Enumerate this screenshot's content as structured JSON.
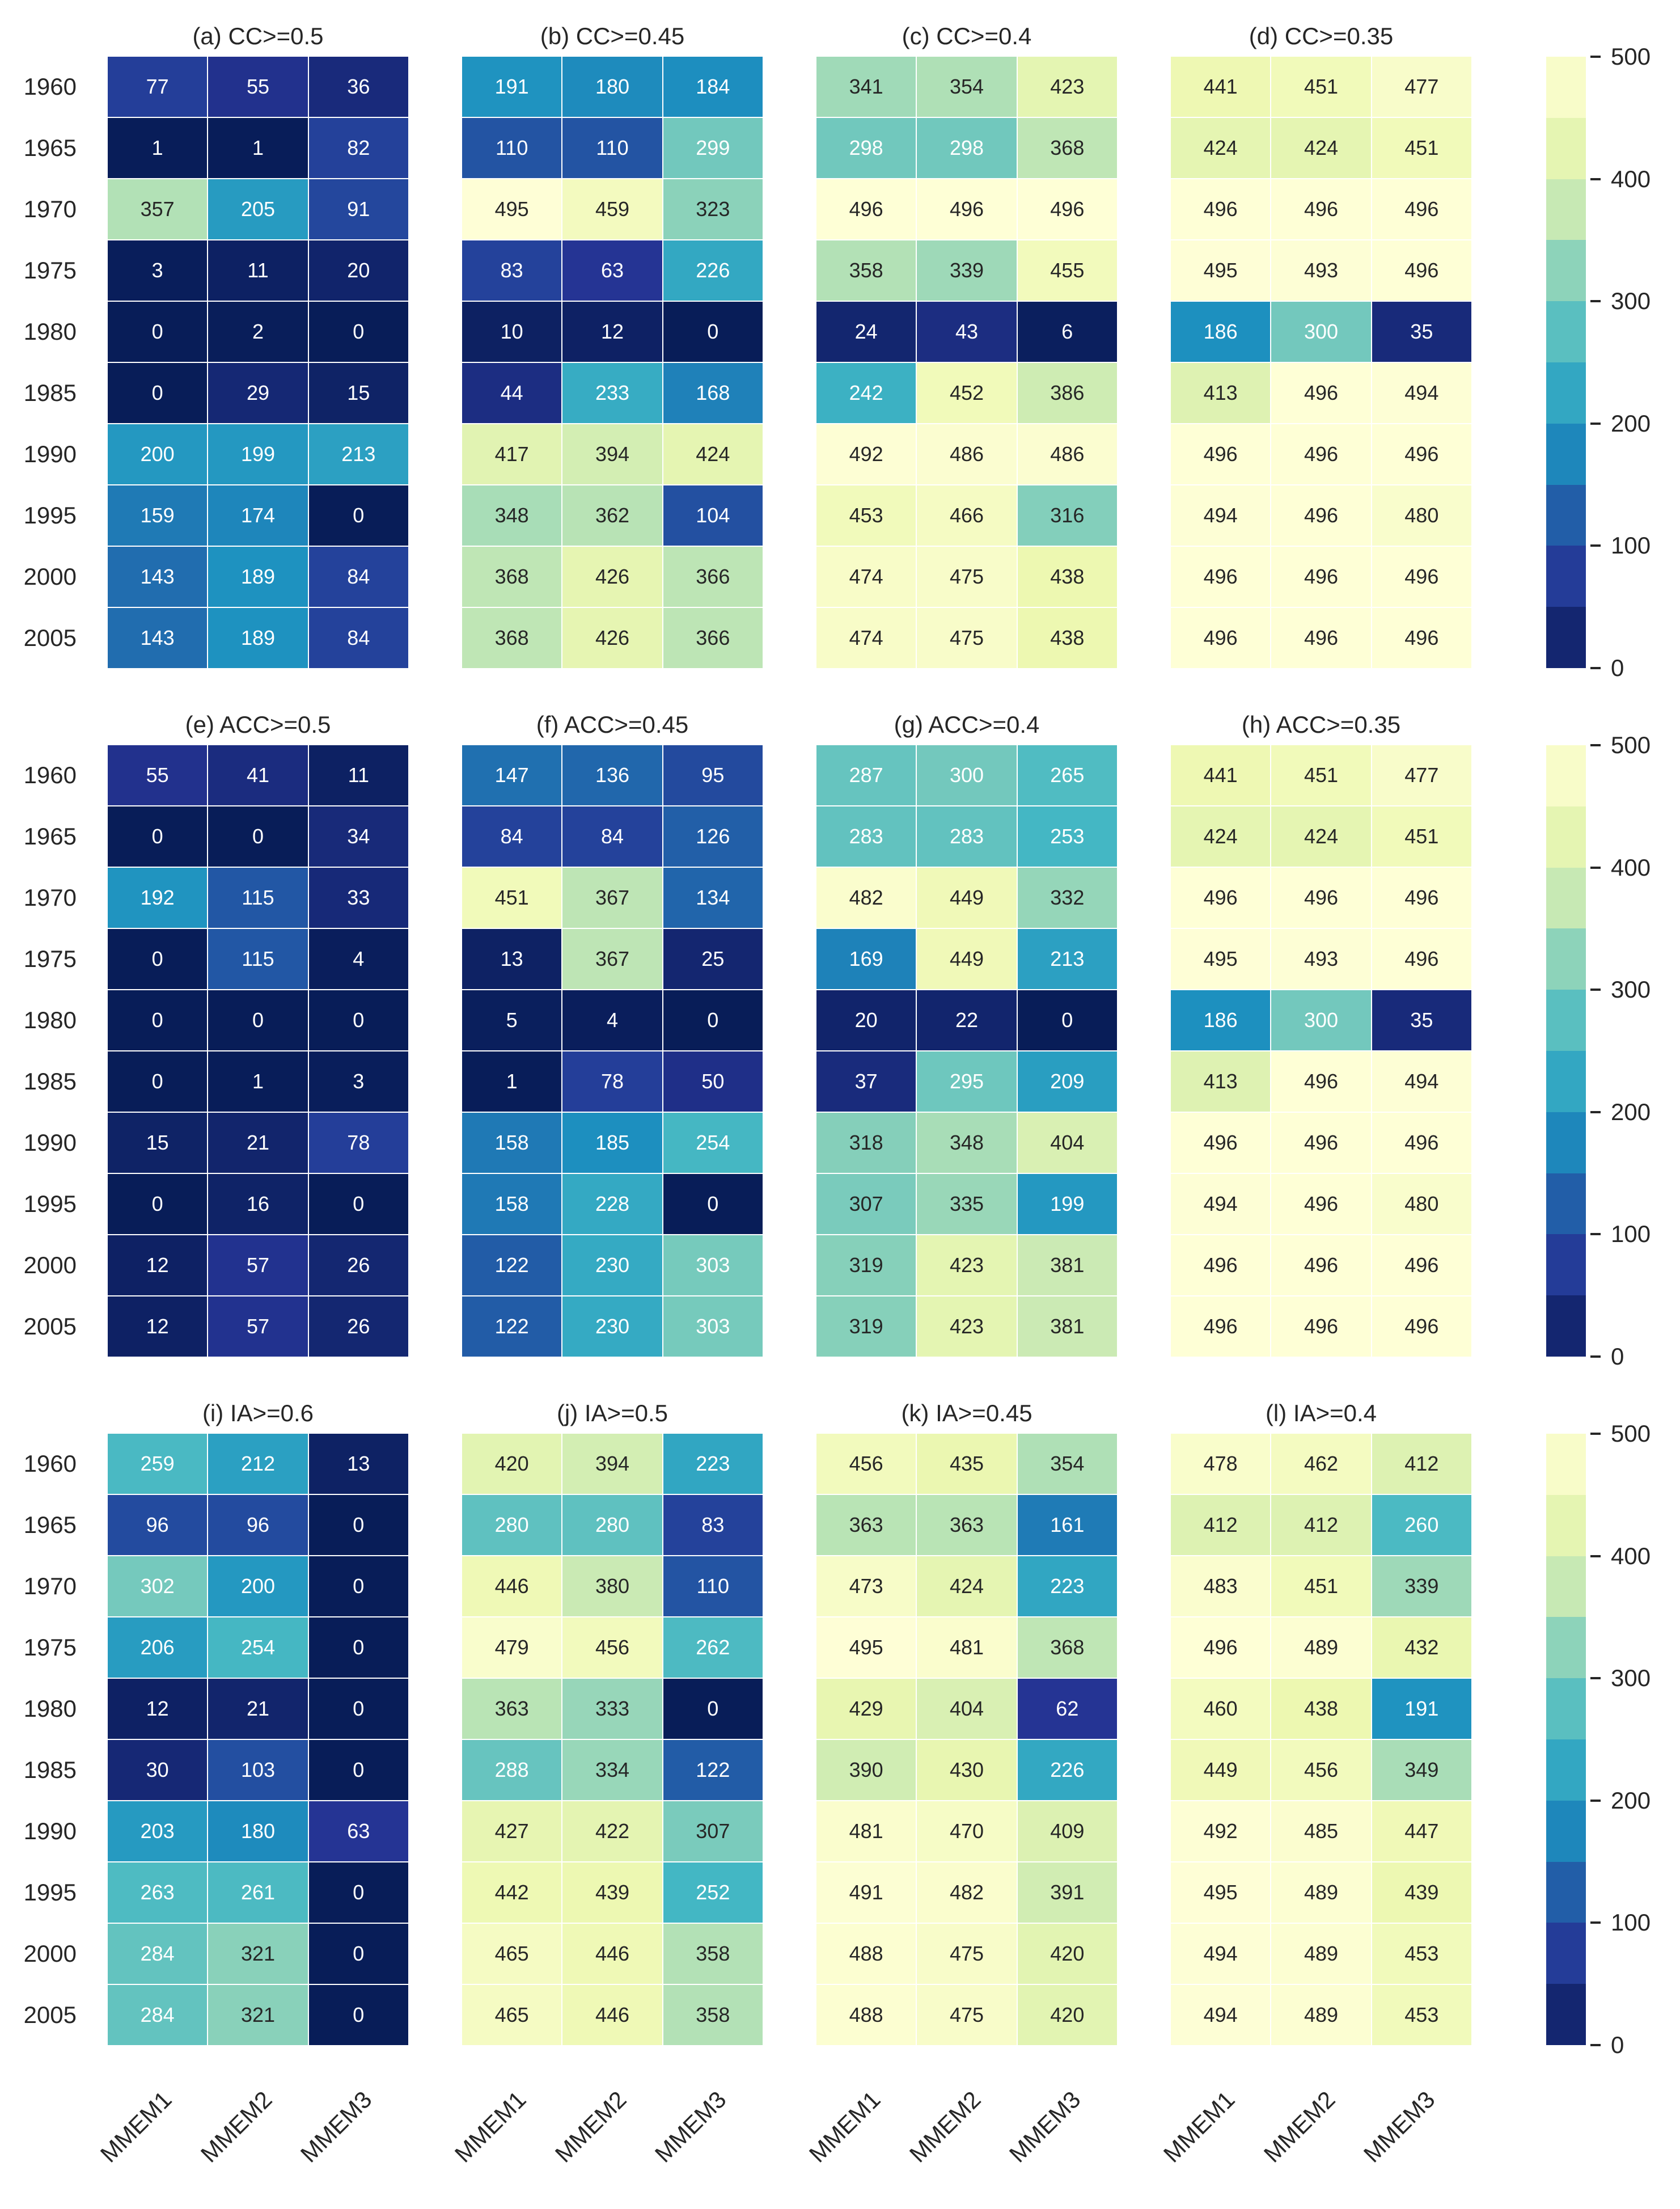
{
  "chart_data": {
    "type": "heatmap",
    "value_range": [
      0,
      500
    ],
    "colormap_stops": [
      "#081d58",
      "#253494",
      "#225ea8",
      "#1d91c0",
      "#41b6c4",
      "#7fcdbb",
      "#c7e9b4",
      "#edf8b1",
      "#ffffd9"
    ],
    "years": [
      "1960",
      "1965",
      "1970",
      "1975",
      "1980",
      "1985",
      "1990",
      "1995",
      "2000",
      "2005"
    ],
    "columns": [
      "MMEM1",
      "MMEM2",
      "MMEM3"
    ],
    "colorbar": {
      "min": 0,
      "max": 500,
      "tick_labels": [
        "500",
        "400",
        "300",
        "200",
        "100",
        "0"
      ],
      "num_bands": 10
    },
    "panel_rows": [
      {
        "panels": [
          {
            "title": "(a) CC>=0.5",
            "values": [
              [
                77,
                55,
                36
              ],
              [
                1,
                1,
                82
              ],
              [
                357,
                205,
                91
              ],
              [
                3,
                11,
                20
              ],
              [
                0,
                2,
                0
              ],
              [
                0,
                29,
                15
              ],
              [
                200,
                199,
                213
              ],
              [
                159,
                174,
                0
              ],
              [
                143,
                189,
                84
              ],
              [
                143,
                189,
                84
              ]
            ]
          },
          {
            "title": "(b) CC>=0.45",
            "values": [
              [
                191,
                180,
                184
              ],
              [
                110,
                110,
                299
              ],
              [
                495,
                459,
                323
              ],
              [
                83,
                63,
                226
              ],
              [
                10,
                12,
                0
              ],
              [
                44,
                233,
                168
              ],
              [
                417,
                394,
                424
              ],
              [
                348,
                362,
                104
              ],
              [
                368,
                426,
                366
              ],
              [
                368,
                426,
                366
              ]
            ]
          },
          {
            "title": "(c) CC>=0.4",
            "values": [
              [
                341,
                354,
                423
              ],
              [
                298,
                298,
                368
              ],
              [
                496,
                496,
                496
              ],
              [
                358,
                339,
                455
              ],
              [
                24,
                43,
                6
              ],
              [
                242,
                452,
                386
              ],
              [
                492,
                486,
                486
              ],
              [
                453,
                466,
                316
              ],
              [
                474,
                475,
                438
              ],
              [
                474,
                475,
                438
              ]
            ]
          },
          {
            "title": "(d) CC>=0.35",
            "values": [
              [
                441,
                451,
                477
              ],
              [
                424,
                424,
                451
              ],
              [
                496,
                496,
                496
              ],
              [
                495,
                493,
                496
              ],
              [
                186,
                300,
                35
              ],
              [
                413,
                496,
                494
              ],
              [
                496,
                496,
                496
              ],
              [
                494,
                496,
                480
              ],
              [
                496,
                496,
                496
              ],
              [
                496,
                496,
                496
              ]
            ]
          }
        ]
      },
      {
        "panels": [
          {
            "title": "(e) ACC>=0.5",
            "values": [
              [
                55,
                41,
                11
              ],
              [
                0,
                0,
                34
              ],
              [
                192,
                115,
                33
              ],
              [
                0,
                115,
                4
              ],
              [
                0,
                0,
                0
              ],
              [
                0,
                1,
                3
              ],
              [
                15,
                21,
                78
              ],
              [
                0,
                16,
                0
              ],
              [
                12,
                57,
                26
              ],
              [
                12,
                57,
                26
              ]
            ]
          },
          {
            "title": "(f) ACC>=0.45",
            "values": [
              [
                147,
                136,
                95
              ],
              [
                84,
                84,
                126
              ],
              [
                451,
                367,
                134
              ],
              [
                13,
                367,
                25
              ],
              [
                5,
                4,
                0
              ],
              [
                1,
                78,
                50
              ],
              [
                158,
                185,
                254
              ],
              [
                158,
                228,
                0
              ],
              [
                122,
                230,
                303
              ],
              [
                122,
                230,
                303
              ]
            ]
          },
          {
            "title": "(g) ACC>=0.4",
            "values": [
              [
                287,
                300,
                265
              ],
              [
                283,
                283,
                253
              ],
              [
                482,
                449,
                332
              ],
              [
                169,
                449,
                213
              ],
              [
                20,
                22,
                0
              ],
              [
                37,
                295,
                209
              ],
              [
                318,
                348,
                404
              ],
              [
                307,
                335,
                199
              ],
              [
                319,
                423,
                381
              ],
              [
                319,
                423,
                381
              ]
            ]
          },
          {
            "title": "(h) ACC>=0.35",
            "values": [
              [
                441,
                451,
                477
              ],
              [
                424,
                424,
                451
              ],
              [
                496,
                496,
                496
              ],
              [
                495,
                493,
                496
              ],
              [
                186,
                300,
                35
              ],
              [
                413,
                496,
                494
              ],
              [
                496,
                496,
                496
              ],
              [
                494,
                496,
                480
              ],
              [
                496,
                496,
                496
              ],
              [
                496,
                496,
                496
              ]
            ]
          }
        ]
      },
      {
        "panels": [
          {
            "title": "(i) IA>=0.6",
            "values": [
              [
                259,
                212,
                13
              ],
              [
                96,
                96,
                0
              ],
              [
                302,
                200,
                0
              ],
              [
                206,
                254,
                0
              ],
              [
                12,
                21,
                0
              ],
              [
                30,
                103,
                0
              ],
              [
                203,
                180,
                63
              ],
              [
                263,
                261,
                0
              ],
              [
                284,
                321,
                0
              ],
              [
                284,
                321,
                0
              ]
            ]
          },
          {
            "title": "(j) IA>=0.5",
            "values": [
              [
                420,
                394,
                223
              ],
              [
                280,
                280,
                83
              ],
              [
                446,
                380,
                110
              ],
              [
                479,
                456,
                262
              ],
              [
                363,
                333,
                0
              ],
              [
                288,
                334,
                122
              ],
              [
                427,
                422,
                307
              ],
              [
                442,
                439,
                252
              ],
              [
                465,
                446,
                358
              ],
              [
                465,
                446,
                358
              ]
            ]
          },
          {
            "title": "(k) IA>=0.45",
            "values": [
              [
                456,
                435,
                354
              ],
              [
                363,
                363,
                161
              ],
              [
                473,
                424,
                223
              ],
              [
                495,
                481,
                368
              ],
              [
                429,
                404,
                62
              ],
              [
                390,
                430,
                226
              ],
              [
                481,
                470,
                409
              ],
              [
                491,
                482,
                391
              ],
              [
                488,
                475,
                420
              ],
              [
                488,
                475,
                420
              ]
            ]
          },
          {
            "title": "(l) IA>=0.4",
            "values": [
              [
                478,
                462,
                412
              ],
              [
                412,
                412,
                260
              ],
              [
                483,
                451,
                339
              ],
              [
                496,
                489,
                432
              ],
              [
                460,
                438,
                191
              ],
              [
                449,
                456,
                349
              ],
              [
                492,
                485,
                447
              ],
              [
                495,
                489,
                439
              ],
              [
                494,
                489,
                453
              ],
              [
                494,
                489,
                453
              ]
            ]
          }
        ]
      }
    ]
  }
}
